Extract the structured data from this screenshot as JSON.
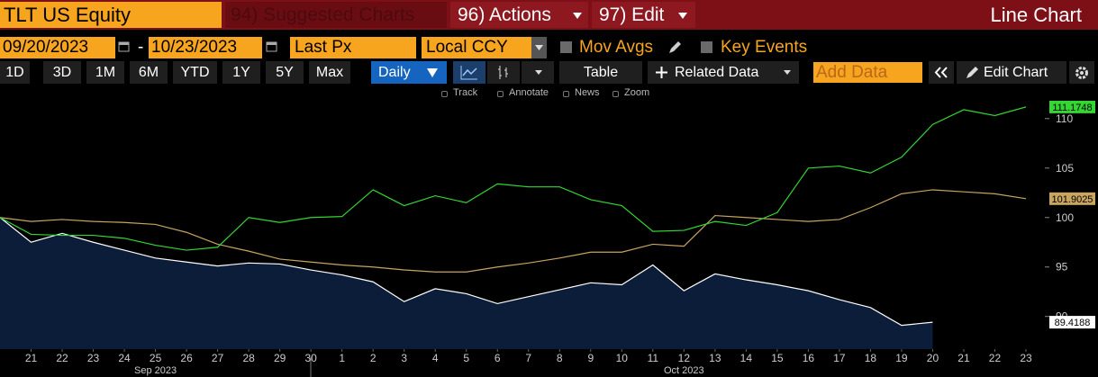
{
  "header": {
    "ticker": "TLT US Equity",
    "suggested": "94) Suggested Charts",
    "actions": "96) Actions",
    "edit": "97) Edit",
    "view": "Line Chart"
  },
  "controls": {
    "start": "09/20/2023",
    "separator": "-",
    "end": "10/23/2023",
    "field": "Last Px",
    "currency": "Local CCY",
    "mov_avgs": "Mov Avgs",
    "key_events": "Key Events"
  },
  "periods": [
    "1D",
    "3D",
    "1M",
    "6M",
    "YTD",
    "1Y",
    "5Y",
    "Max"
  ],
  "toolbar": {
    "frequency": "Daily",
    "table": "Table",
    "related": "Related Data",
    "add_data": "Add Data",
    "edit_chart": "Edit Chart"
  },
  "tools": [
    "Track",
    "Annotate",
    "News",
    "Zoom"
  ],
  "chart_data": {
    "type": "line",
    "x": [
      "2023-09-20",
      "2023-09-21",
      "2023-09-22",
      "2023-09-23",
      "2023-09-24",
      "2023-09-25",
      "2023-09-26",
      "2023-09-27",
      "2023-09-28",
      "2023-09-29",
      "2023-09-30",
      "2023-10-01",
      "2023-10-02",
      "2023-10-03",
      "2023-10-04",
      "2023-10-05",
      "2023-10-06",
      "2023-10-07",
      "2023-10-08",
      "2023-10-09",
      "2023-10-10",
      "2023-10-11",
      "2023-10-12",
      "2023-10-13",
      "2023-10-14",
      "2023-10-15",
      "2023-10-16",
      "2023-10-17",
      "2023-10-18",
      "2023-10-19",
      "2023-10-20",
      "2023-10-21",
      "2023-10-22",
      "2023-10-23"
    ],
    "xlim": [
      "2023-09-20",
      "2023-10-23"
    ],
    "xticks": [
      {
        "value": "2023-09-21",
        "label": "21"
      },
      {
        "value": "2023-09-22",
        "label": "22"
      },
      {
        "value": "2023-09-23",
        "label": "23"
      },
      {
        "value": "2023-09-24",
        "label": "24"
      },
      {
        "value": "2023-09-25",
        "label": "25"
      },
      {
        "value": "2023-09-26",
        "label": "26"
      },
      {
        "value": "2023-09-27",
        "label": "27"
      },
      {
        "value": "2023-09-28",
        "label": "28"
      },
      {
        "value": "2023-09-29",
        "label": "29"
      },
      {
        "value": "2023-09-30",
        "label": "30"
      },
      {
        "value": "2023-10-01",
        "label": "1"
      },
      {
        "value": "2023-10-02",
        "label": "2"
      },
      {
        "value": "2023-10-03",
        "label": "3"
      },
      {
        "value": "2023-10-04",
        "label": "4"
      },
      {
        "value": "2023-10-05",
        "label": "5"
      },
      {
        "value": "2023-10-06",
        "label": "6"
      },
      {
        "value": "2023-10-07",
        "label": "7"
      },
      {
        "value": "2023-10-08",
        "label": "8"
      },
      {
        "value": "2023-10-09",
        "label": "9"
      },
      {
        "value": "2023-10-10",
        "label": "10"
      },
      {
        "value": "2023-10-11",
        "label": "11"
      },
      {
        "value": "2023-10-12",
        "label": "12"
      },
      {
        "value": "2023-10-13",
        "label": "13"
      },
      {
        "value": "2023-10-14",
        "label": "14"
      },
      {
        "value": "2023-10-15",
        "label": "15"
      },
      {
        "value": "2023-10-16",
        "label": "16"
      },
      {
        "value": "2023-10-17",
        "label": "17"
      },
      {
        "value": "2023-10-18",
        "label": "18"
      },
      {
        "value": "2023-10-19",
        "label": "19"
      },
      {
        "value": "2023-10-20",
        "label": "20"
      },
      {
        "value": "2023-10-21",
        "label": "21"
      },
      {
        "value": "2023-10-22",
        "label": "22"
      },
      {
        "value": "2023-10-23",
        "label": "23"
      }
    ],
    "months": [
      {
        "value": "2023-09",
        "label": "Sep 2023"
      },
      {
        "value": "2023-10",
        "label": "Oct 2023"
      }
    ],
    "ylim": [
      86.7,
      111.8
    ],
    "yticks": [
      90,
      95,
      100,
      105,
      110
    ],
    "grid": false,
    "series": [
      {
        "color": "#ffffff",
        "area_color": "#0c1d3a",
        "values": [
          100,
          97.5,
          98.4,
          97.5,
          96.7,
          95.9,
          95.5,
          95.1,
          95.4,
          95.3,
          94.7,
          94.2,
          93.5,
          91.5,
          92.8,
          92.3,
          91.3,
          92,
          92.7,
          93.4,
          93.2,
          95.2,
          92.6,
          94.3,
          93.7,
          93.2,
          92.6,
          91.7,
          90.9,
          89.1,
          89.4188,
          null,
          null,
          null
        ]
      },
      {
        "color": "#c8a560",
        "values": [
          100,
          99.6,
          99.8,
          99.6,
          99.5,
          99.3,
          98.5,
          97.3,
          96.6,
          95.8,
          95.5,
          95.2,
          95,
          94.7,
          94.5,
          94.5,
          95,
          95.4,
          95.9,
          96.5,
          96.5,
          97.3,
          97.1,
          100.2,
          100,
          99.8,
          99.6,
          99.8,
          101,
          102.4,
          102.8,
          102.6,
          102.4,
          101.9025
        ]
      },
      {
        "color": "#33d633",
        "values": [
          100,
          98.3,
          98.2,
          98.2,
          97.9,
          97.2,
          96.7,
          97,
          100,
          99.5,
          100,
          100.1,
          102.8,
          101.2,
          102.2,
          101.5,
          103.4,
          103.1,
          103.1,
          101.8,
          101.2,
          98.6,
          98.7,
          99.6,
          99.2,
          100.5,
          105,
          105.2,
          104.5,
          106.1,
          109.4,
          110.9,
          110.3,
          111.1748
        ]
      }
    ]
  }
}
